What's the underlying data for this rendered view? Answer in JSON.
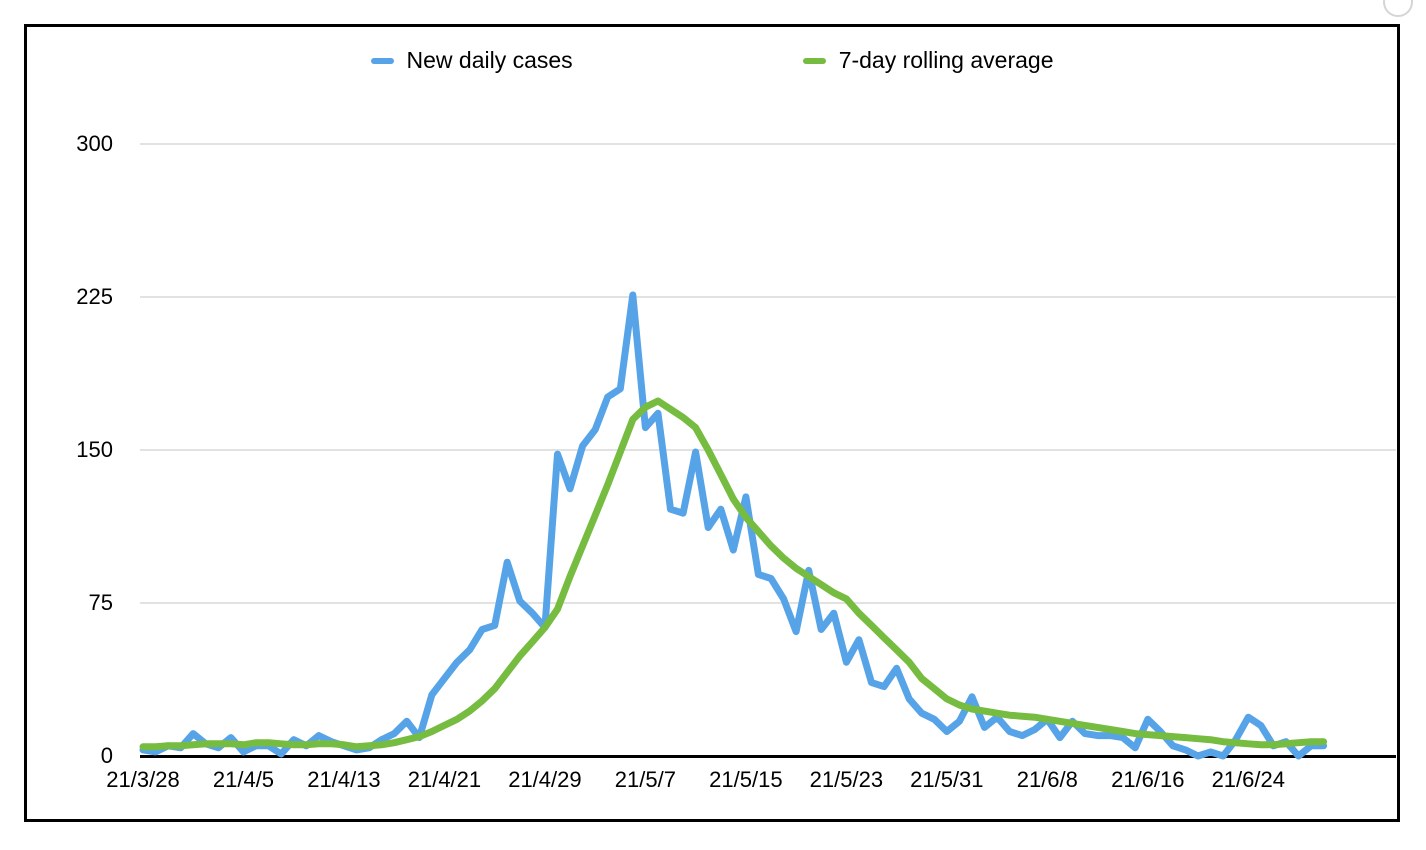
{
  "chart_data": {
    "type": "line",
    "title": "",
    "xlabel": "",
    "ylabel": "",
    "ylim": [
      0,
      300
    ],
    "y_ticks": [
      300,
      225,
      150,
      75,
      0
    ],
    "grid": true,
    "grid_color": "#d9d9d9",
    "axis_color": "#000000",
    "legend_position": "top",
    "x_tick_labels": [
      "21/3/28",
      "21/4/5",
      "21/4/13",
      "21/4/21",
      "21/4/29",
      "21/5/7",
      "21/5/15",
      "21/5/23",
      "21/5/31",
      "21/6/8",
      "21/6/16",
      "21/6/24"
    ],
    "x_tick_interval_days": 8,
    "x": [
      "21/3/28",
      "21/3/29",
      "21/3/30",
      "21/3/31",
      "21/4/1",
      "21/4/2",
      "21/4/3",
      "21/4/4",
      "21/4/5",
      "21/4/6",
      "21/4/7",
      "21/4/8",
      "21/4/9",
      "21/4/10",
      "21/4/11",
      "21/4/12",
      "21/4/13",
      "21/4/14",
      "21/4/15",
      "21/4/16",
      "21/4/17",
      "21/4/18",
      "21/4/19",
      "21/4/20",
      "21/4/21",
      "21/4/22",
      "21/4/23",
      "21/4/24",
      "21/4/25",
      "21/4/26",
      "21/4/27",
      "21/4/28",
      "21/4/29",
      "21/4/30",
      "21/5/1",
      "21/5/2",
      "21/5/3",
      "21/5/4",
      "21/5/5",
      "21/5/6",
      "21/5/7",
      "21/5/8",
      "21/5/9",
      "21/5/10",
      "21/5/11",
      "21/5/12",
      "21/5/13",
      "21/5/14",
      "21/5/15",
      "21/5/16",
      "21/5/17",
      "21/5/18",
      "21/5/19",
      "21/5/20",
      "21/5/21",
      "21/5/22",
      "21/5/23",
      "21/5/24",
      "21/5/25",
      "21/5/26",
      "21/5/27",
      "21/5/28",
      "21/5/29",
      "21/5/30",
      "21/5/31",
      "21/6/1",
      "21/6/2",
      "21/6/3",
      "21/6/4",
      "21/6/5",
      "21/6/6",
      "21/6/7",
      "21/6/8",
      "21/6/9",
      "21/6/10",
      "21/6/11",
      "21/6/12",
      "21/6/13",
      "21/6/14",
      "21/6/15",
      "21/6/16",
      "21/6/17",
      "21/6/18",
      "21/6/19",
      "21/6/20",
      "21/6/21",
      "21/6/22",
      "21/6/23",
      "21/6/24",
      "21/6/25",
      "21/6/26",
      "21/6/27",
      "21/6/28",
      "21/6/29",
      "21/6/30"
    ],
    "series": [
      {
        "name": "New daily cases",
        "color": "#57a3e8",
        "values": [
          3,
          2,
          5,
          4,
          11,
          6,
          4,
          9,
          2,
          5,
          5,
          1,
          8,
          5,
          10,
          7,
          5,
          3,
          4,
          8,
          11,
          17,
          9,
          30,
          38,
          46,
          52,
          62,
          64,
          95,
          76,
          70,
          63,
          148,
          131,
          152,
          160,
          176,
          180,
          226,
          161,
          168,
          121,
          119,
          149,
          112,
          121,
          101,
          127,
          89,
          87,
          77,
          61,
          91,
          62,
          70,
          46,
          57,
          36,
          34,
          43,
          28,
          21,
          18,
          12,
          17,
          29,
          14,
          19,
          12,
          10,
          13,
          18,
          9,
          17,
          11,
          10,
          10,
          9,
          4,
          18,
          12,
          5,
          3,
          0,
          2,
          0,
          8,
          19,
          15,
          5,
          7,
          0,
          5,
          5
        ]
      },
      {
        "name": "7-day rolling average",
        "color": "#76bc40",
        "values": [
          4.5,
          4.5,
          5,
          5,
          5.5,
          6,
          6,
          6,
          5.5,
          6.5,
          6.5,
          6,
          5.5,
          5.5,
          6,
          6,
          5.5,
          4.5,
          5,
          5.5,
          6.5,
          8,
          9.5,
          12,
          15,
          18,
          22,
          27,
          33,
          41,
          49,
          56,
          63,
          72,
          88,
          103,
          118,
          133,
          149,
          165,
          171,
          174,
          170,
          166,
          161,
          150,
          138,
          126,
          117,
          110,
          103,
          97,
          92,
          88,
          84,
          80,
          77,
          70,
          64,
          58,
          52,
          46,
          38,
          33,
          28,
          25,
          23,
          22,
          21,
          20,
          19.5,
          19,
          18,
          17,
          16,
          15,
          14,
          13,
          12,
          11,
          10.5,
          10,
          9.5,
          9,
          8.5,
          8,
          7,
          6.5,
          6,
          5.5,
          5.5,
          6,
          6.5,
          7,
          7
        ]
      }
    ]
  }
}
